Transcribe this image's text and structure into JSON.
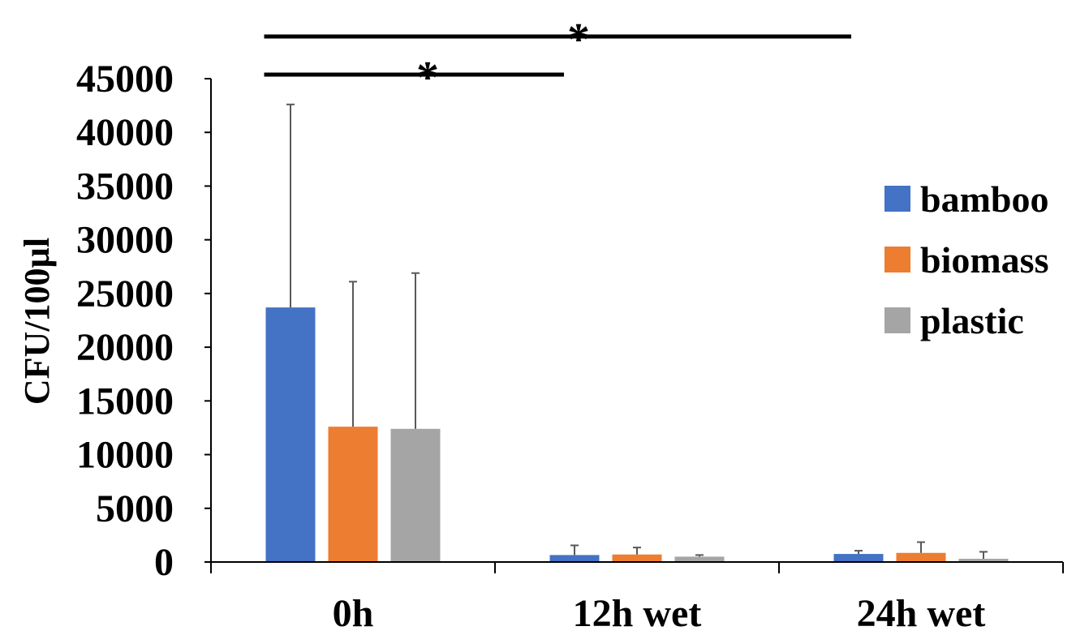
{
  "chart_data": {
    "type": "bar",
    "title": "",
    "xlabel": "",
    "ylabel": "CFU/100µl",
    "ylim": [
      0,
      45000
    ],
    "yticks": [
      0,
      5000,
      10000,
      15000,
      20000,
      25000,
      30000,
      35000,
      40000,
      45000
    ],
    "categories": [
      "0h",
      "12h wet",
      "24h wet"
    ],
    "series": [
      {
        "name": "bamboo",
        "color": "#4472C4",
        "values": [
          23700,
          650,
          750
        ],
        "error_plus": [
          18900,
          900,
          300
        ]
      },
      {
        "name": "biomass",
        "color": "#ED7D31",
        "values": [
          12600,
          700,
          850
        ],
        "error_plus": [
          13500,
          650,
          1000
        ]
      },
      {
        "name": "plastic",
        "color": "#A5A5A5",
        "values": [
          12400,
          500,
          300
        ],
        "error_plus": [
          14500,
          150,
          650
        ]
      }
    ],
    "legend_position": "right",
    "grid": false,
    "significance": [
      {
        "label": "*",
        "from_category": "0h",
        "to_category": "12h wet",
        "level": 1
      },
      {
        "label": "*",
        "from_category": "0h",
        "to_category": "24h wet",
        "level": 2
      }
    ]
  }
}
